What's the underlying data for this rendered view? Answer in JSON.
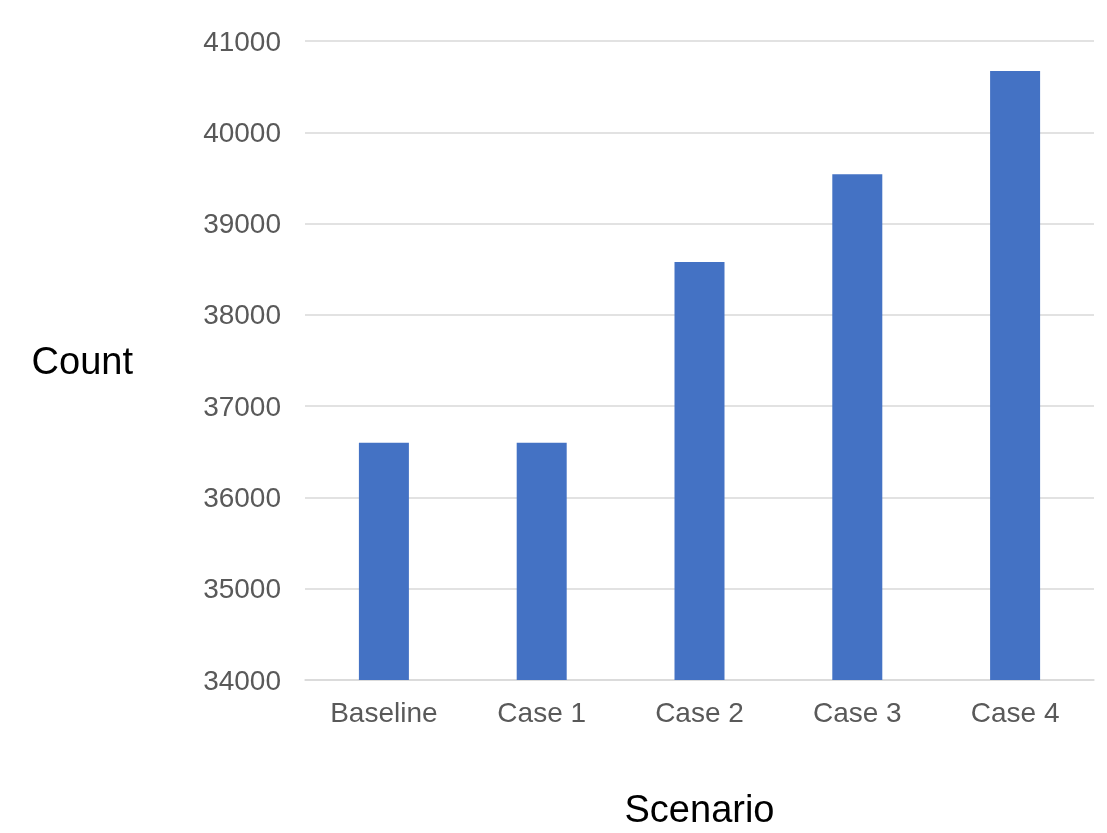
{
  "chart_data": {
    "type": "bar",
    "xlabel": "Scenario",
    "ylabel": "Count",
    "categories": [
      "Baseline",
      "Case 1",
      "Case 2",
      "Case 3",
      "Case 4"
    ],
    "values": [
      36600,
      36600,
      38580,
      39540,
      40670
    ],
    "color": "#4472c4",
    "ylim": [
      34000,
      41000
    ],
    "yticks": [
      34000,
      35000,
      36000,
      37000,
      38000,
      39000,
      40000,
      41000
    ],
    "grid": "y"
  }
}
